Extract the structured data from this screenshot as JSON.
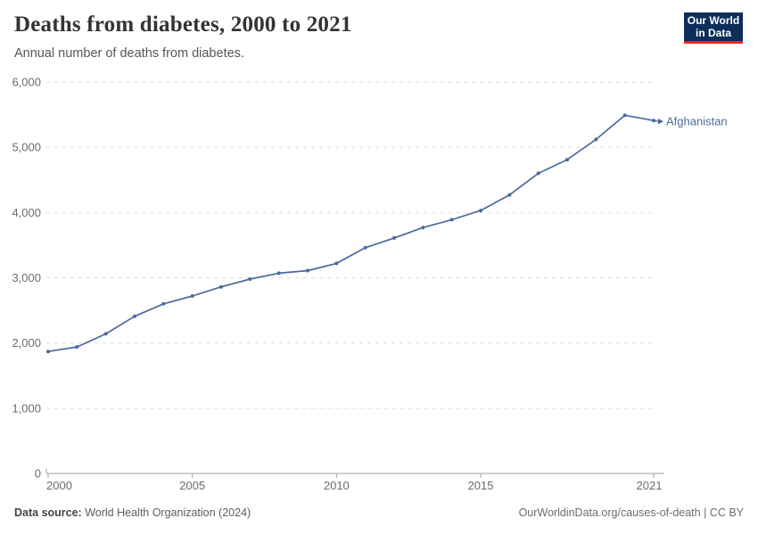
{
  "header": {
    "title": "Deaths from diabetes, 2000 to 2021",
    "subtitle": "Annual number of deaths from diabetes.",
    "logo_line1": "Our World",
    "logo_line2": "in Data"
  },
  "chart_data": {
    "type": "line",
    "title": "Deaths from diabetes, 2000 to 2021",
    "xlabel": "",
    "ylabel": "",
    "series": [
      {
        "name": "Afghanistan",
        "x": [
          2000,
          2001,
          2002,
          2003,
          2004,
          2005,
          2006,
          2007,
          2008,
          2009,
          2010,
          2011,
          2012,
          2013,
          2014,
          2015,
          2016,
          2017,
          2018,
          2019,
          2020,
          2021
        ],
        "values": [
          1870,
          1940,
          2140,
          2410,
          2600,
          2720,
          2860,
          2980,
          3070,
          3110,
          3220,
          3460,
          3610,
          3770,
          3890,
          4030,
          4270,
          4600,
          4810,
          5120,
          5490,
          5410
        ]
      }
    ],
    "x_range": [
      2000,
      2021
    ],
    "ylim": [
      0,
      6000
    ],
    "yticks": [
      0,
      1000,
      2000,
      3000,
      4000,
      5000,
      6000
    ],
    "ytick_labels": [
      "0",
      "1,000",
      "2,000",
      "3,000",
      "4,000",
      "5,000",
      "6,000"
    ],
    "xticks": [
      2000,
      2005,
      2010,
      2015,
      2021
    ],
    "xtick_labels": [
      "2000",
      "2005",
      "2010",
      "2015",
      "2021"
    ],
    "grid": "horizontal dashed",
    "legend_position": "end-of-line label with arrow",
    "line_color": "#4c6a9c",
    "entity_label": "Afghanistan"
  },
  "colors": {
    "line": "#4c6a9c",
    "grid": "#dedede",
    "axis": "#a1a1a1",
    "tick_text": "#6b6b6b",
    "title_text": "#333333",
    "subtitle_text": "#565656",
    "logo_bg": "#0d2d5a",
    "logo_red": "#dc2830"
  },
  "footer": {
    "source_label": "Data source:",
    "source_text": "World Health Organization (2024)",
    "credit": "OurWorldinData.org/causes-of-death | CC BY"
  }
}
